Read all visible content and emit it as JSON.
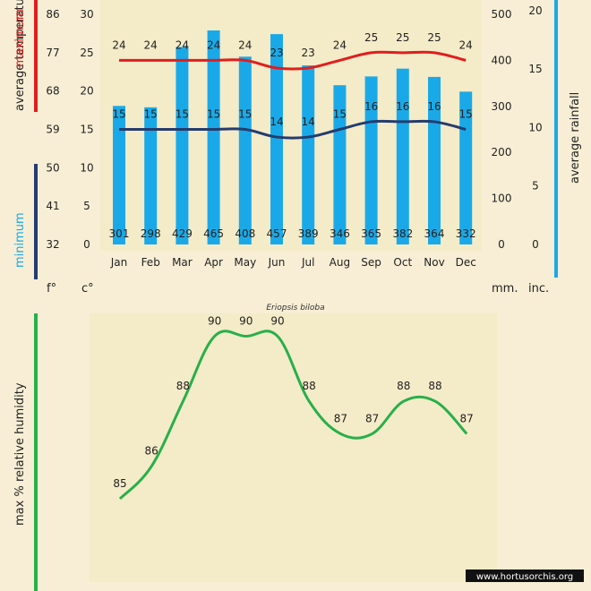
{
  "species": "Eriopsis biloba",
  "watermark": "www.hortusorchis.org",
  "colors": {
    "background": "#f7eed5",
    "panel": "#f4ebc8",
    "bar": "#1aa9e8",
    "max_line": "#e01e1e",
    "min_line": "#243c6e",
    "humidity": "#27b04a",
    "rain_axis": "#1aa9e8"
  },
  "chart_data": [
    {
      "type": "bar+line",
      "title": "",
      "categories": [
        "Jan",
        "Feb",
        "Mar",
        "Apr",
        "May",
        "Jun",
        "Jul",
        "Aug",
        "Sep",
        "Oct",
        "Nov",
        "Dec"
      ],
      "series": [
        {
          "name": "average rainfall (mm)",
          "type": "bar",
          "values": [
            301,
            298,
            429,
            465,
            408,
            457,
            389,
            346,
            365,
            382,
            364,
            332
          ]
        },
        {
          "name": "maximum average temperature (°C)",
          "type": "line",
          "values": [
            24,
            24,
            24,
            24,
            24,
            23,
            23,
            24,
            25,
            25,
            25,
            24
          ]
        },
        {
          "name": "minimum average temperature (°C)",
          "type": "line",
          "values": [
            15,
            15,
            15,
            15,
            15,
            14,
            14,
            15,
            16,
            16,
            16,
            15
          ]
        }
      ],
      "axes": {
        "fahrenheit": {
          "ticks": [
            32,
            41,
            50,
            59,
            68,
            77,
            86
          ],
          "unit": "f°"
        },
        "celsius": {
          "ticks": [
            0,
            5,
            10,
            15,
            20,
            25,
            30
          ],
          "unit": "c°",
          "ylim": [
            0,
            30
          ]
        },
        "rain_mm": {
          "ticks": [
            0,
            100,
            200,
            300,
            400,
            500
          ],
          "unit": "mm.",
          "ylim": [
            0,
            500
          ]
        },
        "rain_in": {
          "ticks": [
            0,
            5,
            10,
            15,
            20
          ],
          "unit": "inc."
        }
      },
      "labels": {
        "left_max": "maximum",
        "left_temp": "average temperatures",
        "left_min": "minimum",
        "right": "average rainfall"
      }
    },
    {
      "type": "line",
      "categories": [
        "Jan",
        "Feb",
        "Mar",
        "Apr",
        "May",
        "Jun",
        "Jul",
        "Aug",
        "Sep",
        "Oct",
        "Nov",
        "Dec"
      ],
      "series": [
        {
          "name": "max % relative humidity",
          "values": [
            85,
            86,
            88,
            90,
            90,
            90,
            88,
            87,
            87,
            88,
            88,
            87
          ]
        }
      ],
      "ylim": [
        80,
        95
      ],
      "ylabel": "max %  relative humidity"
    }
  ]
}
